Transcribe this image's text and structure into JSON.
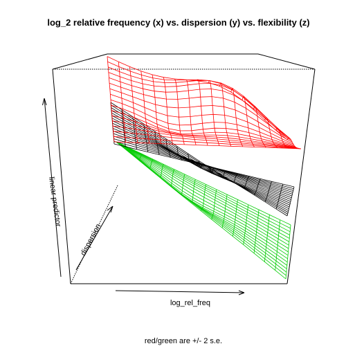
{
  "chart_data": {
    "type": "surface",
    "title": "log_2 relative frequency (x) vs. dispersion (y) vs. flexibility (z)",
    "xlabel": "log_rel_freq",
    "ylabel": "dispersion",
    "zlabel": "linear predictor",
    "note": "red/green are +/- 2 s.e.",
    "axis_ticks_shown": false,
    "grid": "mesh",
    "surfaces": [
      {
        "role": "upper",
        "color": "#ff0000"
      },
      {
        "role": "fit",
        "color": "#000000"
      },
      {
        "role": "lower",
        "color": "#00cc00"
      }
    ]
  }
}
